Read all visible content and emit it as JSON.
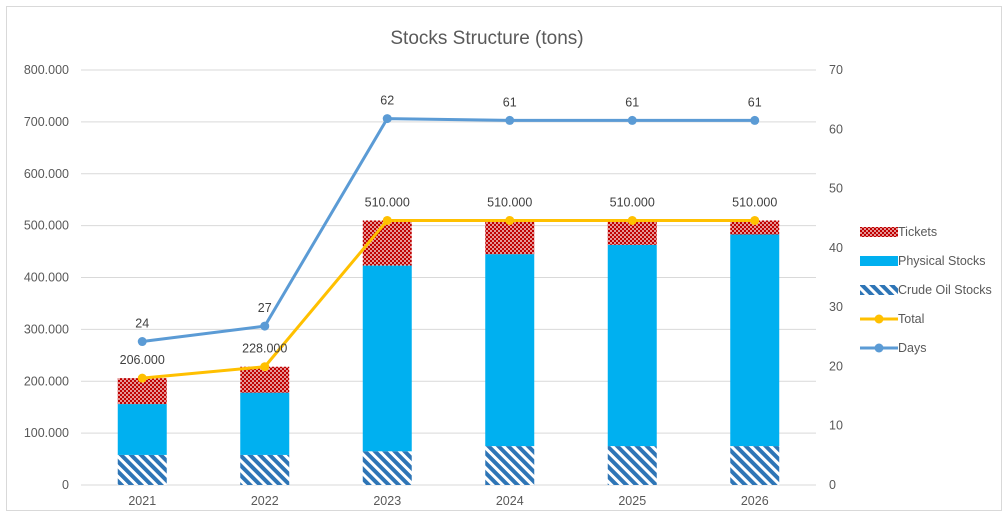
{
  "chart_data": {
    "type": "bar",
    "title": "Stocks Structure (tons)",
    "categories": [
      "2021",
      "2022",
      "2023",
      "2024",
      "2025",
      "2026"
    ],
    "stacked": true,
    "y_left": {
      "min": 0,
      "max": 800000,
      "step": 100000,
      "tick_labels": [
        "0",
        "100.000",
        "200.000",
        "300.000",
        "400.000",
        "500.000",
        "600.000",
        "700.000",
        "800.000"
      ]
    },
    "y_right": {
      "min": 0,
      "max": 70,
      "step": 10,
      "tick_labels": [
        "0",
        "10",
        "20",
        "30",
        "40",
        "50",
        "60",
        "70"
      ]
    },
    "grid": true,
    "legend_position": "right",
    "series": [
      {
        "name": "Crude Oil Stocks",
        "kind": "bar",
        "axis": "left",
        "color": "#2E75B6",
        "pattern": "diagonal-stripes",
        "values": [
          58000,
          58000,
          65000,
          75000,
          75000,
          75000
        ]
      },
      {
        "name": "Physical Stocks",
        "kind": "bar",
        "axis": "left",
        "color": "#00B0F0",
        "values": [
          98000,
          120000,
          358000,
          370000,
          388000,
          408000
        ]
      },
      {
        "name": "Tickets",
        "kind": "bar",
        "axis": "left",
        "color": "#C00000",
        "pattern": "dots",
        "values": [
          50000,
          50000,
          87000,
          65000,
          47000,
          27000
        ]
      },
      {
        "name": "Total",
        "kind": "line",
        "axis": "left",
        "color": "#FFC000",
        "values": [
          206000,
          228000,
          510000,
          510000,
          510000,
          510000
        ],
        "labels": [
          "206.000",
          "228.000",
          "510.000",
          "510.000",
          "510.000",
          "510.000"
        ]
      },
      {
        "name": "Days",
        "kind": "line",
        "axis": "right",
        "color": "#5B9BD5",
        "values": [
          24.2,
          26.8,
          61.8,
          61.5,
          61.5,
          61.5
        ],
        "labels": [
          "24",
          "27",
          "62",
          "61",
          "61",
          "61"
        ]
      }
    ],
    "legend_order": [
      "Tickets",
      "Physical Stocks",
      "Crude Oil Stocks",
      "Total",
      "Days"
    ]
  }
}
